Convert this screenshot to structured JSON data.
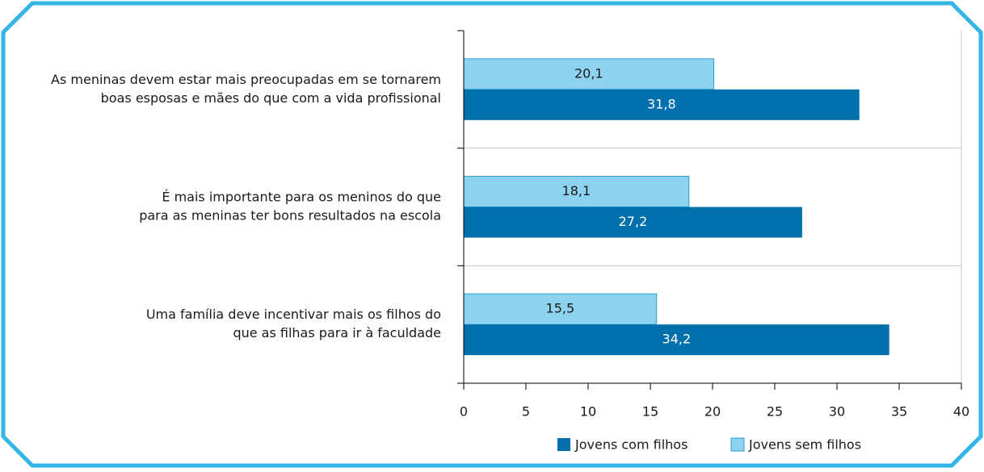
{
  "chart_data": {
    "type": "barh",
    "categories": [
      [
        "As meninas devem estar mais preocupadas em se tornarem",
        "boas esposas e mães do que com a vida profissional"
      ],
      [
        "É mais importante para os meninos do que",
        "para as meninas ter bons resultados na escola"
      ],
      [
        "Uma família deve incentivar mais os filhos do",
        "que as filhas para ir à faculdade"
      ]
    ],
    "series": [
      {
        "name": "Jovens com filhos",
        "color": "#0070ad",
        "values": [
          31.8,
          27.2,
          34.2
        ],
        "value_labels": [
          "31,8",
          "27,2",
          "34,2"
        ]
      },
      {
        "name": "Jovens sem filhos",
        "color": "#8dd3f0",
        "values": [
          20.1,
          18.1,
          15.5
        ],
        "value_labels": [
          "20,1",
          "18,1",
          "15,5"
        ]
      }
    ],
    "xlim": [
      0,
      40
    ],
    "xticks": [
      0,
      5,
      10,
      15,
      20,
      25,
      30,
      35,
      40
    ],
    "legend": "bottom"
  }
}
